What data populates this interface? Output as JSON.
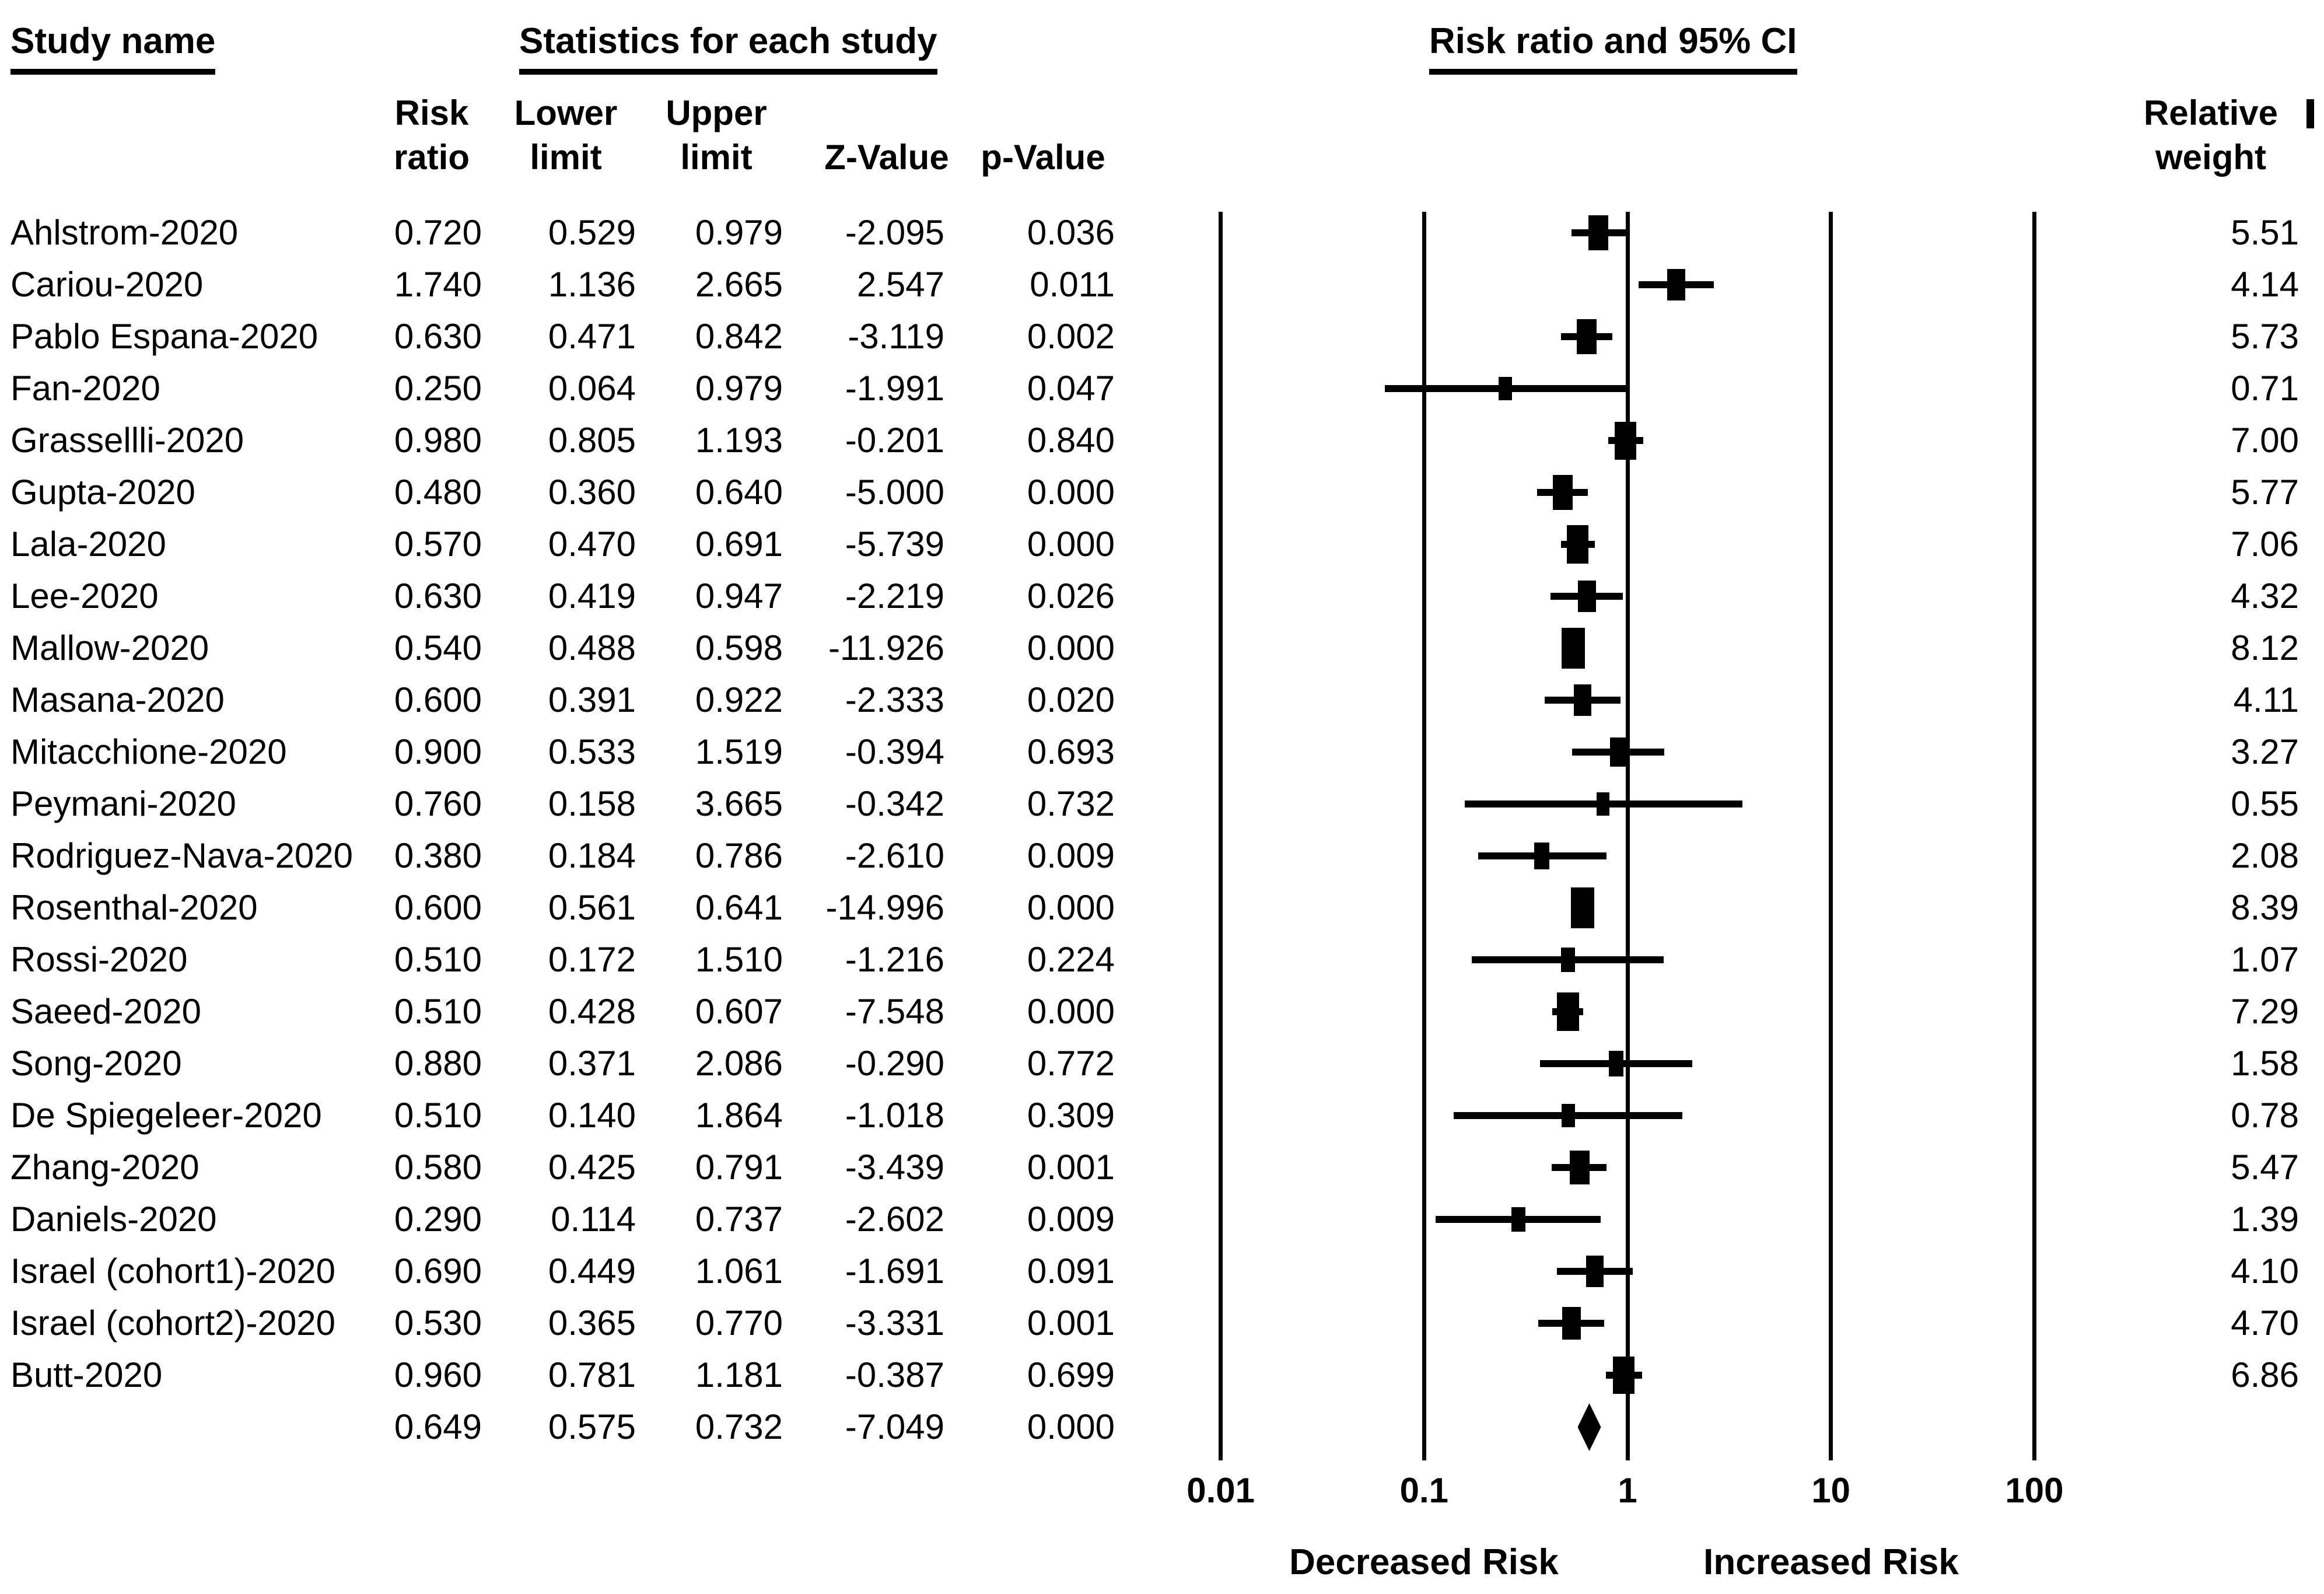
{
  "page": {
    "background": "#ffffff",
    "ink_color": "#000000"
  },
  "headers": {
    "study_name": "Study name",
    "statistics": "Statistics for each study",
    "risk_ratio_ci": "Risk ratio and 95% CI",
    "relative_weight_line1": "Relative",
    "relative_weight_line2": "weight"
  },
  "subheaders": {
    "risk_ratio": [
      "Risk",
      "ratio"
    ],
    "lower_limit": [
      "Lower",
      "limit"
    ],
    "upper_limit": [
      "Upper",
      "limit"
    ],
    "z_value": "Z-Value",
    "p_value": "p-Value"
  },
  "axis": {
    "tick_labels": [
      "0.01",
      "0.1",
      "1",
      "10",
      "100"
    ],
    "tick_values": [
      0.01,
      0.1,
      1,
      10,
      100
    ],
    "left_label": "Decreased Risk",
    "right_label": "Increased Risk"
  },
  "chart_data": {
    "type": "forest",
    "title": "Risk ratio and 95% CI",
    "x_scale": "log10",
    "xlim": [
      0.01,
      100
    ],
    "x_ticks": [
      0.01,
      0.1,
      1,
      10,
      100
    ],
    "x_tick_labels": [
      "0.01",
      "0.1",
      "1",
      "10",
      "100"
    ],
    "marker_color": "#000000",
    "columns": [
      "Study name",
      "Risk ratio",
      "Lower limit",
      "Upper limit",
      "Z-Value",
      "p-Value",
      "Relative weight"
    ],
    "studies": [
      {
        "name": "Ahlstrom-2020",
        "risk_ratio": "0.720",
        "lower": "0.529",
        "upper": "0.979",
        "z": "-2.095",
        "p": "0.036",
        "weight": "5.51"
      },
      {
        "name": "Cariou-2020",
        "risk_ratio": "1.740",
        "lower": "1.136",
        "upper": "2.665",
        "z": "2.547",
        "p": "0.011",
        "weight": "4.14"
      },
      {
        "name": "Pablo Espana-2020",
        "risk_ratio": "0.630",
        "lower": "0.471",
        "upper": "0.842",
        "z": "-3.119",
        "p": "0.002",
        "weight": "5.73"
      },
      {
        "name": "Fan-2020",
        "risk_ratio": "0.250",
        "lower": "0.064",
        "upper": "0.979",
        "z": "-1.991",
        "p": "0.047",
        "weight": "0.71"
      },
      {
        "name": "Grassellli-2020",
        "risk_ratio": "0.980",
        "lower": "0.805",
        "upper": "1.193",
        "z": "-0.201",
        "p": "0.840",
        "weight": "7.00"
      },
      {
        "name": "Gupta-2020",
        "risk_ratio": "0.480",
        "lower": "0.360",
        "upper": "0.640",
        "z": "-5.000",
        "p": "0.000",
        "weight": "5.77"
      },
      {
        "name": "Lala-2020",
        "risk_ratio": "0.570",
        "lower": "0.470",
        "upper": "0.691",
        "z": "-5.739",
        "p": "0.000",
        "weight": "7.06"
      },
      {
        "name": "Lee-2020",
        "risk_ratio": "0.630",
        "lower": "0.419",
        "upper": "0.947",
        "z": "-2.219",
        "p": "0.026",
        "weight": "4.32"
      },
      {
        "name": "Mallow-2020",
        "risk_ratio": "0.540",
        "lower": "0.488",
        "upper": "0.598",
        "z": "-11.926",
        "p": "0.000",
        "weight": "8.12"
      },
      {
        "name": "Masana-2020",
        "risk_ratio": "0.600",
        "lower": "0.391",
        "upper": "0.922",
        "z": "-2.333",
        "p": "0.020",
        "weight": "4.11"
      },
      {
        "name": "Mitacchione-2020",
        "risk_ratio": "0.900",
        "lower": "0.533",
        "upper": "1.519",
        "z": "-0.394",
        "p": "0.693",
        "weight": "3.27"
      },
      {
        "name": "Peymani-2020",
        "risk_ratio": "0.760",
        "lower": "0.158",
        "upper": "3.665",
        "z": "-0.342",
        "p": "0.732",
        "weight": "0.55"
      },
      {
        "name": "Rodriguez-Nava-2020",
        "risk_ratio": "0.380",
        "lower": "0.184",
        "upper": "0.786",
        "z": "-2.610",
        "p": "0.009",
        "weight": "2.08"
      },
      {
        "name": "Rosenthal-2020",
        "risk_ratio": "0.600",
        "lower": "0.561",
        "upper": "0.641",
        "z": "-14.996",
        "p": "0.000",
        "weight": "8.39"
      },
      {
        "name": "Rossi-2020",
        "risk_ratio": "0.510",
        "lower": "0.172",
        "upper": "1.510",
        "z": "-1.216",
        "p": "0.224",
        "weight": "1.07"
      },
      {
        "name": "Saeed-2020",
        "risk_ratio": "0.510",
        "lower": "0.428",
        "upper": "0.607",
        "z": "-7.548",
        "p": "0.000",
        "weight": "7.29"
      },
      {
        "name": "Song-2020",
        "risk_ratio": "0.880",
        "lower": "0.371",
        "upper": "2.086",
        "z": "-0.290",
        "p": "0.772",
        "weight": "1.58"
      },
      {
        "name": "De Spiegeleer-2020",
        "risk_ratio": "0.510",
        "lower": "0.140",
        "upper": "1.864",
        "z": "-1.018",
        "p": "0.309",
        "weight": "0.78"
      },
      {
        "name": "Zhang-2020",
        "risk_ratio": "0.580",
        "lower": "0.425",
        "upper": "0.791",
        "z": "-3.439",
        "p": "0.001",
        "weight": "5.47"
      },
      {
        "name": "Daniels-2020",
        "risk_ratio": "0.290",
        "lower": "0.114",
        "upper": "0.737",
        "z": "-2.602",
        "p": "0.009",
        "weight": "1.39"
      },
      {
        "name": "Israel (cohort1)-2020",
        "risk_ratio": "0.690",
        "lower": "0.449",
        "upper": "1.061",
        "z": "-1.691",
        "p": "0.091",
        "weight": "4.10"
      },
      {
        "name": "Israel (cohort2)-2020",
        "risk_ratio": "0.530",
        "lower": "0.365",
        "upper": "0.770",
        "z": "-3.331",
        "p": "0.001",
        "weight": "4.70"
      },
      {
        "name": "Butt-2020",
        "risk_ratio": "0.960",
        "lower": "0.781",
        "upper": "1.181",
        "z": "-0.387",
        "p": "0.699",
        "weight": "6.86"
      }
    ],
    "summary": {
      "risk_ratio": "0.649",
      "lower": "0.575",
      "upper": "0.732",
      "z": "-7.049",
      "p": "0.000"
    },
    "x_axis_annotations": [
      "Decreased Risk",
      "Increased Risk"
    ]
  }
}
